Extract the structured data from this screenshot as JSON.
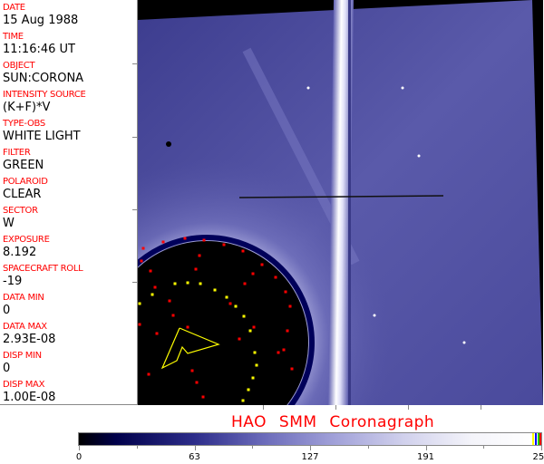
{
  "fields": [
    {
      "label": "DATE",
      "value": "15 Aug 1988"
    },
    {
      "label": "TIME",
      "value": "11:16:46 UT"
    },
    {
      "label": "OBJECT",
      "value": "SUN:CORONA"
    },
    {
      "label": "INTENSITY SOURCE",
      "value": "(K+F)*V"
    },
    {
      "label": "TYPE-OBS",
      "value": "WHITE LIGHT"
    },
    {
      "label": "FILTER",
      "value": "GREEN"
    },
    {
      "label": "POLAROID",
      "value": "CLEAR"
    },
    {
      "label": "SECTOR",
      "value": "W"
    },
    {
      "label": "EXPOSURE",
      "value": "8.192"
    },
    {
      "label": "SPACECRAFT ROLL",
      "value": "-19"
    },
    {
      "label": "DATA MIN",
      "value": "0"
    },
    {
      "label": "DATA MAX",
      "value": "2.93E-08"
    },
    {
      "label": "DISP MIN",
      "value": "0"
    },
    {
      "label": "DISP MAX",
      "value": "1.00E-08"
    }
  ],
  "title": "HAO  SMM Coronagraph",
  "colorbar": {
    "ticks": [
      "0",
      "63",
      "127",
      "191",
      "255"
    ],
    "colors": {
      "low": "#000000",
      "mid": "#6b6bba",
      "high": "#ffffff",
      "overlay_yellow": "#ffff00",
      "overlay_red": "#ff0000",
      "overlay_blue": "#0000ff",
      "overlay_green": "#00c000"
    }
  }
}
